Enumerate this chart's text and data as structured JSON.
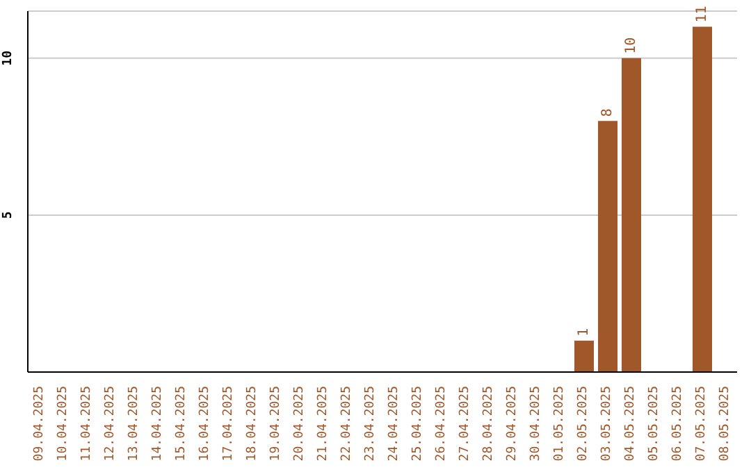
{
  "chart_data": {
    "type": "bar",
    "categories": [
      "09.04.2025",
      "10.04.2025",
      "11.04.2025",
      "12.04.2025",
      "13.04.2025",
      "14.04.2025",
      "15.04.2025",
      "16.04.2025",
      "17.04.2025",
      "18.04.2025",
      "19.04.2025",
      "20.04.2025",
      "21.04.2025",
      "22.04.2025",
      "23.04.2025",
      "24.04.2025",
      "25.04.2025",
      "26.04.2025",
      "27.04.2025",
      "28.04.2025",
      "29.04.2025",
      "30.04.2025",
      "01.05.2025",
      "02.05.2025",
      "03.05.2025",
      "04.05.2025",
      "05.05.2025",
      "06.05.2025",
      "07.05.2025",
      "08.05.2025"
    ],
    "values": [
      null,
      null,
      null,
      null,
      null,
      null,
      null,
      null,
      null,
      null,
      null,
      null,
      null,
      null,
      null,
      null,
      null,
      null,
      null,
      null,
      null,
      null,
      null,
      1,
      8,
      10,
      null,
      null,
      11,
      null
    ],
    "color": "#a0572a",
    "ylim": [
      0,
      11.5
    ],
    "yticks": [
      5,
      10
    ],
    "grid": "y",
    "data_labels": true
  }
}
